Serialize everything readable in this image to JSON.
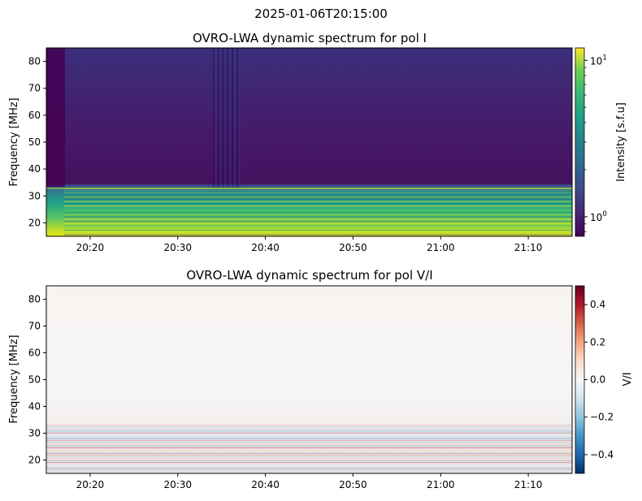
{
  "figure": {
    "suptitle": "2025-01-06T20:15:00"
  },
  "chart_data": [
    {
      "type": "heatmap",
      "title": "OVRO-LWA dynamic spectrum for pol I",
      "xlabel": "",
      "ylabel": "Frequency [MHz]",
      "x_ticks": [
        "20:20",
        "20:30",
        "20:40",
        "20:50",
        "21:00",
        "21:10"
      ],
      "x_range": [
        "20:15",
        "21:15"
      ],
      "y_ticks": [
        20,
        30,
        40,
        50,
        60,
        70,
        80
      ],
      "ylim": [
        15,
        85
      ],
      "colormap": "viridis",
      "colorbar": {
        "label": "Intensity [s.f.u]",
        "scale": "log",
        "range": [
          0.75,
          12
        ],
        "ticks": [
          {
            "value": 1,
            "base": "10",
            "exp": "0"
          },
          {
            "value": 10,
            "base": "10",
            "exp": "1"
          }
        ]
      },
      "features": {
        "gap_end": "20:17",
        "bright_band_mhz": [
          15,
          33
        ],
        "vertical_striations": [
          "20:34",
          "20:37"
        ]
      }
    },
    {
      "type": "heatmap",
      "title": "OVRO-LWA dynamic spectrum for pol V/I",
      "xlabel": "",
      "ylabel": "Frequency [MHz]",
      "x_ticks": [
        "20:20",
        "20:30",
        "20:40",
        "20:50",
        "21:00",
        "21:10"
      ],
      "x_range": [
        "20:15",
        "21:15"
      ],
      "y_ticks": [
        20,
        30,
        40,
        50,
        60,
        70,
        80
      ],
      "ylim": [
        15,
        85
      ],
      "colormap": "RdBu_r",
      "colorbar": {
        "label": "V/I",
        "scale": "linear",
        "range": [
          -0.5,
          0.5
        ],
        "ticks": [
          "0.4",
          "0.2",
          "0.0",
          "−0.2",
          "−0.4"
        ]
      },
      "features": {
        "active_band_mhz": [
          15,
          33
        ]
      }
    }
  ]
}
